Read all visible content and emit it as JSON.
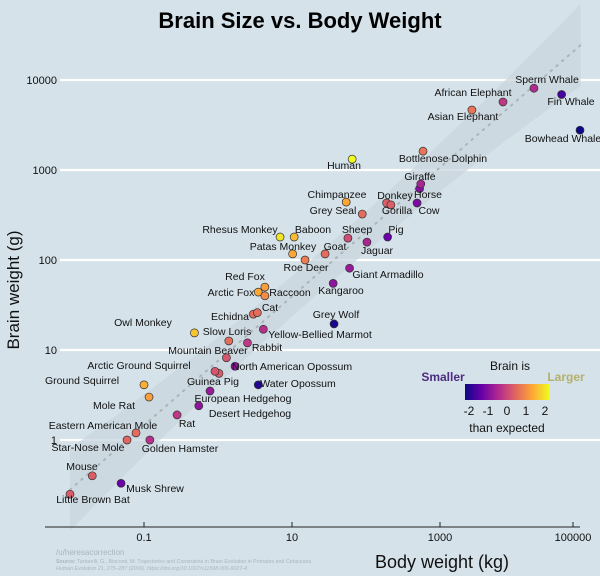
{
  "chart_data": {
    "type": "scatter",
    "title": "Brain Size vs. Body Weight",
    "xlabel": "Body weight (kg)",
    "ylabel": "Brain weight (g)",
    "x_scale": "log",
    "y_scale": "log",
    "xlim": [
      0.02,
      150000
    ],
    "ylim": [
      0.15,
      25000
    ],
    "x_ticks": [
      0.1,
      10,
      1000,
      100000
    ],
    "x_tick_labels": [
      "0.1",
      "10",
      "1000",
      "100000"
    ],
    "y_ticks": [
      1,
      10,
      100,
      1000,
      10000
    ],
    "y_tick_labels": [
      "1",
      "10",
      "100",
      "1000",
      "10000"
    ],
    "grid": "horizontal",
    "trend": {
      "type": "log-log regression with confidence band",
      "slope": 0.716,
      "intercept_log10": 0.88
    },
    "colorbar": {
      "title": "Brain is",
      "low_label": "Smaller",
      "high_label": "Larger",
      "subtitle": "than expected",
      "range": [
        -2,
        2
      ],
      "tick_labels": [
        "-2",
        "-1",
        "0",
        "1",
        "2"
      ],
      "colors": [
        "#0d0887",
        "#6a00a8",
        "#b12a90",
        "#e16462",
        "#fca636",
        "#f0f921"
      ],
      "low_label_color": "#4b2c80",
      "high_label_color": "#b5b06a",
      "placement": "lower-right"
    },
    "points": [
      {
        "name": "Little Brown Bat",
        "x": 0.01,
        "y": 0.25,
        "residual": 0.3
      },
      {
        "name": "Mouse",
        "x": 0.02,
        "y": 0.4,
        "residual": 0.3
      },
      {
        "name": "Musk Shrew",
        "x": 0.049,
        "y": 0.33,
        "residual": -1.2
      },
      {
        "name": "Star-Nose Mole",
        "x": 0.059,
        "y": 1.0,
        "residual": 0.4
      },
      {
        "name": "Eastern American Mole",
        "x": 0.078,
        "y": 1.2,
        "residual": 0.5
      },
      {
        "name": "Golden Hamster",
        "x": 0.12,
        "y": 1.0,
        "residual": -0.3
      },
      {
        "name": "Rat",
        "x": 0.28,
        "y": 1.9,
        "residual": -0.2
      },
      {
        "name": "Mole Rat",
        "x": 0.117,
        "y": 3.0,
        "residual": 1.1
      },
      {
        "name": "Ground Squirrel",
        "x": 0.1,
        "y": 4.1,
        "residual": 1.3
      },
      {
        "name": "Desert Hedgehog",
        "x": 0.55,
        "y": 2.4,
        "residual": -0.8
      },
      {
        "name": "European Hedgehog",
        "x": 0.78,
        "y": 3.5,
        "residual": -0.7
      },
      {
        "name": "Guinea Pig",
        "x": 1.03,
        "y": 5.5,
        "residual": 0.3
      },
      {
        "name": "Arctic Ground Squirrel",
        "x": 0.91,
        "y": 5.8,
        "residual": 0.2
      },
      {
        "name": "Water Opossum",
        "x": 3.5,
        "y": 4.1,
        "residual": -1.8
      },
      {
        "name": "North American Opossum",
        "x": 1.7,
        "y": 6.6,
        "residual": -0.8
      },
      {
        "name": "Mountain Beaver",
        "x": 1.3,
        "y": 8.2,
        "residual": 0.2
      },
      {
        "name": "Rabbit",
        "x": 2.5,
        "y": 12,
        "residual": -0.2
      },
      {
        "name": "Slow Loris",
        "x": 1.4,
        "y": 12.6,
        "residual": 0.5
      },
      {
        "name": "Yellow-Bellied Marmot",
        "x": 4.1,
        "y": 17,
        "residual": -0.3
      },
      {
        "name": "Owl Monkey",
        "x": 0.48,
        "y": 15.5,
        "residual": 1.5
      },
      {
        "name": "Echidna",
        "x": 3.0,
        "y": 25,
        "residual": 0.5
      },
      {
        "name": "Cat",
        "x": 3.4,
        "y": 26,
        "residual": 0.5
      },
      {
        "name": "Grey Wolf",
        "x": 37,
        "y": 19.5,
        "residual": -1.9
      },
      {
        "name": "Arctic Fox",
        "x": 3.5,
        "y": 44,
        "residual": 1.2
      },
      {
        "name": "Red Fox",
        "x": 4.3,
        "y": 50,
        "residual": 1.1
      },
      {
        "name": "Raccoon",
        "x": 4.3,
        "y": 40,
        "residual": 0.9
      },
      {
        "name": "Kangaroo",
        "x": 36,
        "y": 55,
        "residual": -0.8
      },
      {
        "name": "Giant Armadillo",
        "x": 60,
        "y": 81,
        "residual": -0.7
      },
      {
        "name": "Roe Deer",
        "x": 15,
        "y": 100,
        "residual": 0.7
      },
      {
        "name": "Patas Monkey",
        "x": 10.2,
        "y": 117,
        "residual": 1.2
      },
      {
        "name": "Goat",
        "x": 28,
        "y": 117,
        "residual": 0.5
      },
      {
        "name": "Rhesus Monkey",
        "x": 6.9,
        "y": 180,
        "residual": 1.8
      },
      {
        "name": "Baboon",
        "x": 10.7,
        "y": 180,
        "residual": 1.4
      },
      {
        "name": "Sheep",
        "x": 57,
        "y": 175,
        "residual": 0.1
      },
      {
        "name": "Jaguar",
        "x": 103,
        "y": 158,
        "residual": -0.5
      },
      {
        "name": "Pig",
        "x": 196,
        "y": 180,
        "residual": -1.2
      },
      {
        "name": "Grey Seal",
        "x": 89,
        "y": 324,
        "residual": 0.5
      },
      {
        "name": "Chimpanzee",
        "x": 54,
        "y": 440,
        "residual": 1.2
      },
      {
        "name": "Donkey",
        "x": 190,
        "y": 430,
        "residual": 0.3
      },
      {
        "name": "Gorilla",
        "x": 217,
        "y": 410,
        "residual": 0.3
      },
      {
        "name": "Cow",
        "x": 490,
        "y": 430,
        "residual": -1.0
      },
      {
        "name": "Horse",
        "x": 530,
        "y": 620,
        "residual": -0.9
      },
      {
        "name": "Giraffe",
        "x": 550,
        "y": 700,
        "residual": -0.5
      },
      {
        "name": "Human",
        "x": 65,
        "y": 1320,
        "residual": 2.0
      },
      {
        "name": "Bottlenose Dolphin",
        "x": 590,
        "y": 1620,
        "residual": 0.6
      },
      {
        "name": "Asian Elephant",
        "x": 2700,
        "y": 4640,
        "residual": 0.6
      },
      {
        "name": "African Elephant",
        "x": 7100,
        "y": 5700,
        "residual": -0.2
      },
      {
        "name": "Sperm Whale",
        "x": 18600,
        "y": 8100,
        "residual": -0.4
      },
      {
        "name": "Fin Whale",
        "x": 44000,
        "y": 6900,
        "residual": -1.5
      },
      {
        "name": "Bowhead Whale",
        "x": 78000,
        "y": 2770,
        "residual": -2.0
      }
    ]
  },
  "credit": {
    "author": "/u/heresacorrection",
    "source_label": "Source:",
    "source_line1": "Tartarelli, G., Bisconti, M. Trajectories and Constraints in Brain Evolution in Primates and Cetaceans.",
    "source_line2": "Human Evolution 21, 275–287 (2006). https://doi.org/10.1007/s11598-006-9027-4"
  },
  "colors": {
    "background": "#d5e2ea",
    "grid": "#ffffff",
    "band": "#c9d6de",
    "trend": "#a9b4bb",
    "source_text": "#a8b6c0"
  }
}
